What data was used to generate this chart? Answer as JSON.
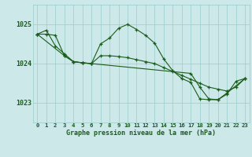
{
  "title": "Graphe pression niveau de la mer (hPa)",
  "ylim": [
    1022.5,
    1025.5
  ],
  "yticks": [
    1023,
    1024,
    1025
  ],
  "background_color": "#cce8e8",
  "grid_color": "#99cccc",
  "line_color": "#1a5c1a",
  "series1_x": [
    0,
    1,
    2,
    3,
    4,
    5,
    6,
    7,
    8,
    9,
    10,
    11,
    12,
    13,
    14,
    15,
    16,
    17,
    18,
    19,
    20,
    21,
    22,
    23
  ],
  "series1_y": [
    1024.75,
    1024.85,
    1024.45,
    1024.25,
    1024.05,
    1024.02,
    1024.0,
    1024.5,
    1024.65,
    1024.9,
    1025.0,
    1024.87,
    1024.72,
    1024.52,
    1024.12,
    1023.82,
    1023.62,
    1023.52,
    1023.1,
    1023.08,
    1023.08,
    1023.22,
    1023.55,
    1023.62
  ],
  "series2_x": [
    0,
    1,
    2,
    3,
    4,
    5,
    6,
    7,
    8,
    9,
    10,
    11,
    12,
    13,
    14,
    15,
    16,
    17,
    18,
    19,
    20,
    21,
    22,
    23
  ],
  "series2_y": [
    1024.75,
    1024.75,
    1024.72,
    1024.2,
    1024.05,
    1024.02,
    1024.0,
    1024.2,
    1024.2,
    1024.18,
    1024.15,
    1024.1,
    1024.05,
    1024.0,
    1023.9,
    1023.8,
    1023.7,
    1023.6,
    1023.5,
    1023.4,
    1023.35,
    1023.3,
    1023.4,
    1023.62
  ],
  "series3_x": [
    0,
    3,
    4,
    5,
    6,
    17,
    18,
    19,
    20,
    21,
    23
  ],
  "series3_y": [
    1024.75,
    1024.2,
    1024.05,
    1024.02,
    1024.0,
    1023.75,
    1023.4,
    1023.1,
    1023.08,
    1023.25,
    1023.62
  ]
}
